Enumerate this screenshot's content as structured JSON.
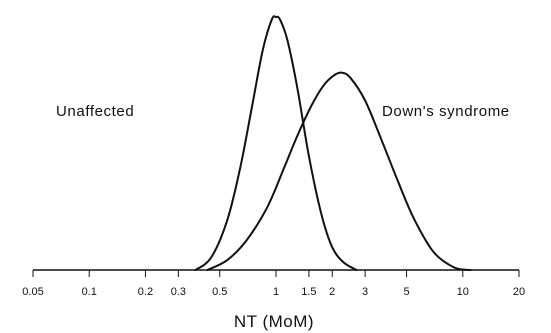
{
  "chart_data": {
    "type": "line",
    "title": "",
    "xlabel": "NT (MoM)",
    "ylabel": "",
    "x_scale": "log",
    "xlim": [
      0.05,
      20
    ],
    "ylim": [
      0,
      1
    ],
    "grid": false,
    "x_ticks": [
      {
        "value": 0.05,
        "label": "0.05"
      },
      {
        "value": 0.1,
        "label": "0.1"
      },
      {
        "value": 0.2,
        "label": "0.2"
      },
      {
        "value": 0.3,
        "label": "0.3"
      },
      {
        "value": 0.5,
        "label": "0.5"
      },
      {
        "value": 1,
        "label": "1"
      },
      {
        "value": 1.5,
        "label": "1.5"
      },
      {
        "value": 2,
        "label": "2"
      },
      {
        "value": 3,
        "label": "3"
      },
      {
        "value": 5,
        "label": "5"
      },
      {
        "value": 10,
        "label": "10"
      },
      {
        "value": 20,
        "label": "20"
      }
    ],
    "series": [
      {
        "name": "Unaffected",
        "x": [
          0.37,
          0.45,
          0.55,
          0.65,
          0.75,
          0.85,
          0.95,
          1.0,
          1.05,
          1.15,
          1.3,
          1.5,
          1.75,
          2.0,
          2.3,
          2.7
        ],
        "y": [
          0.0,
          0.05,
          0.2,
          0.42,
          0.66,
          0.87,
          0.99,
          1.0,
          0.99,
          0.91,
          0.72,
          0.45,
          0.22,
          0.09,
          0.03,
          0.0
        ]
      },
      {
        "name": "Down's syndrome",
        "x": [
          0.43,
          0.55,
          0.7,
          0.9,
          1.1,
          1.3,
          1.55,
          1.8,
          2.05,
          2.25,
          2.5,
          3.0,
          3.6,
          4.5,
          5.5,
          7.0,
          9.0,
          11.0
        ],
        "y": [
          0.0,
          0.04,
          0.12,
          0.25,
          0.4,
          0.53,
          0.65,
          0.73,
          0.77,
          0.78,
          0.76,
          0.67,
          0.53,
          0.35,
          0.2,
          0.07,
          0.01,
          0.0
        ]
      }
    ],
    "annotations": [
      {
        "text": "Unaffected",
        "series": "Unaffected"
      },
      {
        "text": "Down's syndrome",
        "series": "Down's syndrome"
      }
    ]
  }
}
